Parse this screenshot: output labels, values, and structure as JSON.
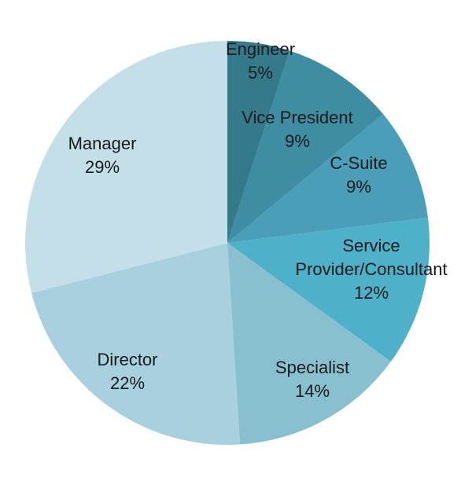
{
  "chart_data": {
    "type": "pie",
    "categories": [
      "Engineer",
      "Vice President",
      "C-Suite",
      "Service Provider/Consultant",
      "Specialist",
      "Director",
      "Manager"
    ],
    "values": [
      5,
      9,
      9,
      12,
      14,
      22,
      29
    ],
    "value_labels": [
      "5%",
      "9%",
      "9%",
      "12%",
      "14%",
      "22%",
      "29%"
    ],
    "label_lines": [
      [
        "Engineer",
        "5%"
      ],
      [
        "Vice President",
        "9%"
      ],
      [
        "C-Suite",
        "9%"
      ],
      [
        "Service",
        "Provider/Consultant",
        "12%"
      ],
      [
        "Specialist",
        "14%"
      ],
      [
        "Director",
        "22%"
      ],
      [
        "Manager",
        "29%"
      ]
    ],
    "colors": [
      "#357a8a",
      "#3e8da3",
      "#4a9eb8",
      "#4eb0c9",
      "#88c0d0",
      "#a8d0de",
      "#c5dfe8"
    ],
    "title": "",
    "legend": "none",
    "start_angle_deg": 0,
    "direction": "clockwise"
  }
}
